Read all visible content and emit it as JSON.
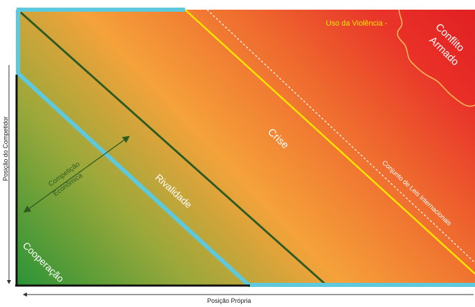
{
  "axes": {
    "y_label": "Posição do Competidor",
    "x_label": "Posição Própria"
  },
  "zones": {
    "cooperation": "Cooperação",
    "economic_competition_line1": "Competição",
    "economic_competition_line2": "Econômica",
    "rivalry": "Rivalidade",
    "crisis": "Crise",
    "armed_conflict_line1": "Conflito",
    "armed_conflict_line2": "Armado"
  },
  "annotations": {
    "use_of_violence": "Uso da Violência -",
    "international_law": "Conjunto de Leis Internacionais"
  },
  "colors": {
    "green": "#2e9a3a",
    "orange": "#f5a23a",
    "red": "#e8322a",
    "cyan_border": "#5ec8dc",
    "yellow_line": "#ffe600",
    "dark_green_line": "#2e5b22"
  }
}
